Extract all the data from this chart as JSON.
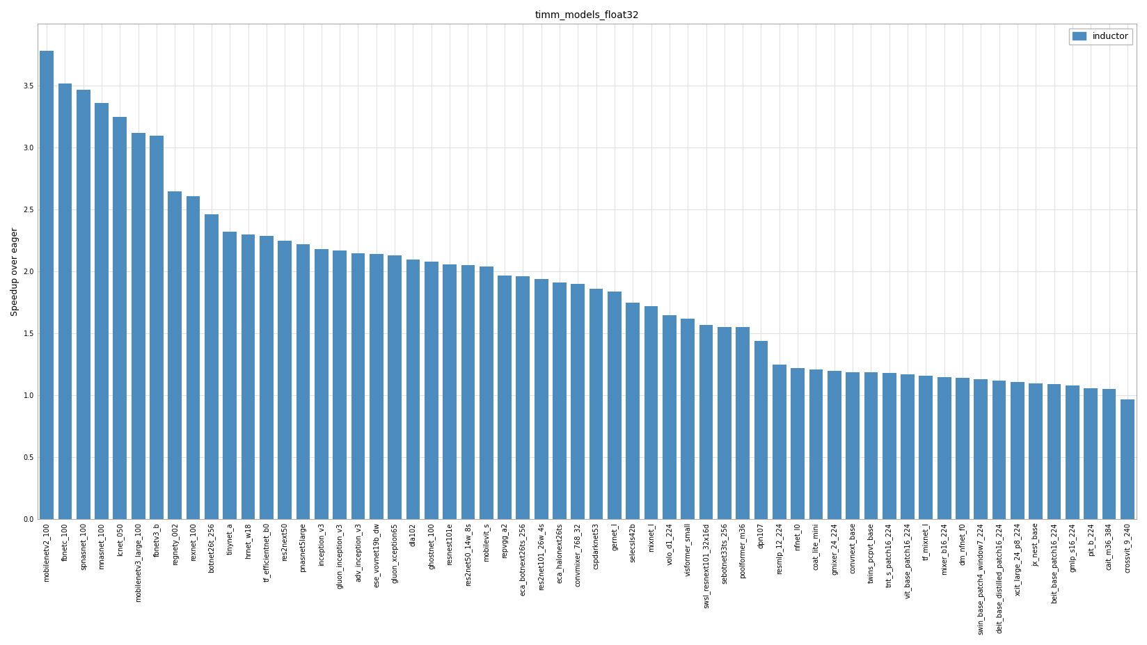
{
  "title": "timm_models_float32",
  "ylabel": "Speedup over eager",
  "bar_color": "#4c8cbf",
  "legend_label": "inductor",
  "categories": [
    "mobilenetv2_100",
    "fbnetc_100",
    "spnasnet_100",
    "mnasnet_100",
    "lcnet_050",
    "mobilenetv3_large_100",
    "fbnetv3_b",
    "regnety_002",
    "rexnet_100",
    "botnet26t_256",
    "tinynet_a",
    "hrnet_w18",
    "tf_efficientnet_b0",
    "res2next50",
    "pnasnet5large",
    "inception_v3",
    "gluon_inception_v3",
    "adv_inception_v3",
    "ese_vovnet19b_dw",
    "gluon_xception65",
    "dla102",
    "ghostnet_100",
    "resnest101e",
    "res2net50_14w_8s",
    "mobilevit_s",
    "repvgg_a2",
    "eca_botnext26ts_256",
    "res2net101_26w_4s",
    "eca_halonext26ts",
    "convmixer_768_32",
    "cspdarknet53",
    "gernet_l",
    "selecsls42b",
    "mixnet_l",
    "volo_d1_224",
    "visformer_small",
    "swsl_resnext101_32x16d",
    "sebotnet33ts_256",
    "poolformer_m36",
    "dpn107",
    "resmlp_12_224",
    "nfnet_l0",
    "coat_lite_mini",
    "gmixer_24_224",
    "convnext_base",
    "twins_pcpvt_base",
    "tnt_s_patch16_224",
    "vit_base_patch16_224",
    "tf_mixnet_l",
    "mixer_b16_224",
    "dm_nfnet_f0",
    "swin_base_patch4_window7_224",
    "deit_base_distilled_patch16_224",
    "xcit_large_24_p8_224",
    "jx_nest_base",
    "beit_base_patch16_224",
    "gmlp_s16_224",
    "pit_b_224",
    "cait_m36_384",
    "crossvit_9_240"
  ],
  "values": [
    3.78,
    3.52,
    3.47,
    3.36,
    3.25,
    3.12,
    3.1,
    2.65,
    2.61,
    2.46,
    2.32,
    2.3,
    2.29,
    2.25,
    2.22,
    2.18,
    2.17,
    2.15,
    2.14,
    2.13,
    2.1,
    2.08,
    2.06,
    2.05,
    2.04,
    1.97,
    1.96,
    1.94,
    1.91,
    1.9,
    1.86,
    1.84,
    1.75,
    1.72,
    1.65,
    1.62,
    1.57,
    1.55,
    1.55,
    1.44,
    1.25,
    1.22,
    1.21,
    1.2,
    1.19,
    1.19,
    1.18,
    1.17,
    1.16,
    1.15,
    1.14,
    1.13,
    1.12,
    1.11,
    1.1,
    1.09,
    1.08,
    1.06,
    1.05,
    0.97
  ],
  "ylim": [
    0.0,
    4.0
  ],
  "yticks": [
    0.0,
    0.5,
    1.0,
    1.5,
    2.0,
    2.5,
    3.0,
    3.5
  ],
  "background_color": "#ffffff",
  "plot_bg_color": "#ffffff",
  "grid_color": "#e0e0e0",
  "title_fontsize": 10,
  "label_fontsize": 9,
  "tick_fontsize": 7.0
}
